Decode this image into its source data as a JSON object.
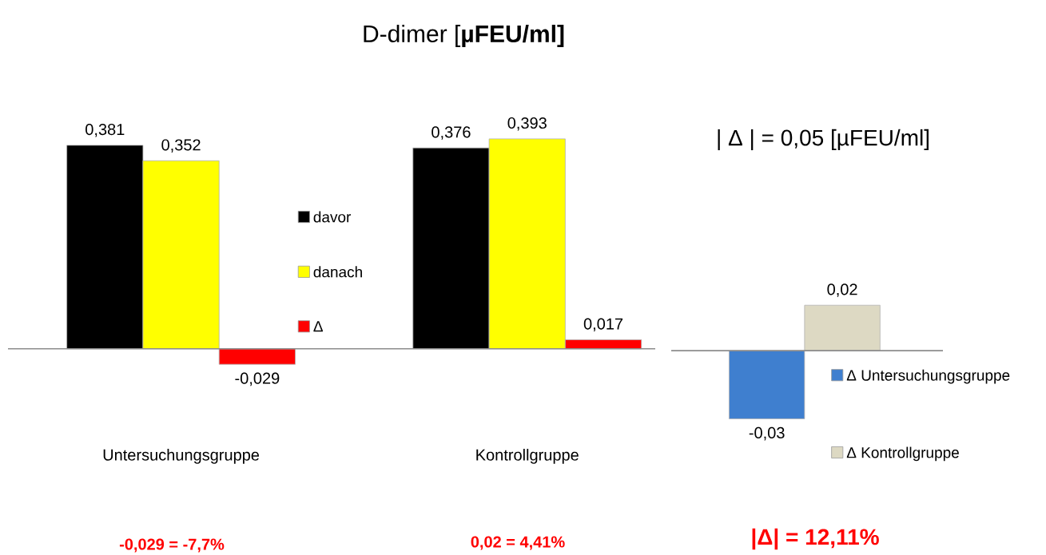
{
  "chart_data": [
    {
      "type": "bar",
      "title": "D-dimer [**µFEU/ml]**",
      "categories": [
        "Untersuchungsgruppe",
        "Kontrollgruppe"
      ],
      "legend": "center",
      "series": [
        {
          "name": "davor",
          "color": "#000000",
          "values": [
            0.381,
            0.376
          ],
          "value_labels": [
            "0,381",
            "0,376"
          ]
        },
        {
          "name": "danach",
          "color": "#ffff00",
          "values": [
            0.352,
            0.393
          ],
          "value_labels": [
            "0,352",
            "0,393"
          ]
        },
        {
          "name": "Δ",
          "color": "#ff0000",
          "values": [
            -0.029,
            0.017
          ],
          "value_labels": [
            "-0,029",
            "0,017"
          ]
        }
      ],
      "annotations": [
        "-0,029 = -7,7%",
        "0,02 =  4,41%"
      ]
    },
    {
      "type": "bar",
      "title": "| Δ | = 0,05 [µFEU/ml]",
      "categories": [
        null
      ],
      "legend": "bottom right",
      "series": [
        {
          "name": "Δ Untersuchungsgruppe",
          "color": "#3f7fcf",
          "values": [
            -0.03
          ],
          "value_labels": [
            "-0,03"
          ]
        },
        {
          "name": "Δ Kontrollgruppe",
          "color": "#ddd9c3",
          "values": [
            0.02
          ],
          "value_labels": [
            "0,02"
          ]
        }
      ],
      "annotations": [
        "|Δ| = 12,11%"
      ]
    }
  ]
}
